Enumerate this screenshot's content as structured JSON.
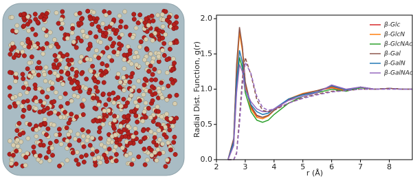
{
  "chart_data": {
    "type": "line",
    "ylabel": "Radial Dist. Function, g(r)",
    "xlabel": "r (Å)",
    "x": [
      2.4,
      2.6,
      2.7,
      2.8,
      2.9,
      3.0,
      3.2,
      3.4,
      3.6,
      3.8,
      4.0,
      4.5,
      5.0,
      5.5,
      6.0,
      6.5,
      7.0,
      7.5,
      8.0,
      8.5,
      8.8
    ],
    "series": [
      {
        "name": "β-Glc",
        "color": "#d62728",
        "values": [
          0,
          0.3,
          1.3,
          1.85,
          1.6,
          1.1,
          0.75,
          0.62,
          0.6,
          0.62,
          0.7,
          0.85,
          0.93,
          0.98,
          1.02,
          0.98,
          1.03,
          1.0,
          1.01,
          1.0,
          1.0
        ]
      },
      {
        "name": "β-GlcN",
        "color": "#ff7f0e",
        "values": [
          0,
          0.28,
          1.25,
          1.8,
          1.55,
          1.05,
          0.72,
          0.6,
          0.58,
          0.62,
          0.7,
          0.86,
          0.94,
          0.98,
          1.03,
          0.98,
          1.02,
          1.0,
          1.01,
          1.0,
          1.0
        ]
      },
      {
        "name": "β-GlcNAc",
        "color": "#2ca02c",
        "values": [
          0,
          0.22,
          1.0,
          1.45,
          1.3,
          0.95,
          0.68,
          0.56,
          0.53,
          0.56,
          0.64,
          0.8,
          0.9,
          0.95,
          1.0,
          0.97,
          1.02,
          1.0,
          1.01,
          1.0,
          1.0
        ]
      },
      {
        "name": "β-Gal",
        "color": "#8c564b",
        "values": [
          0,
          0.3,
          1.35,
          1.88,
          1.6,
          1.1,
          0.76,
          0.63,
          0.6,
          0.63,
          0.7,
          0.86,
          0.93,
          0.98,
          1.04,
          0.99,
          1.03,
          1.0,
          1.01,
          1.0,
          1.0
        ]
      },
      {
        "name": "β-GalN",
        "color": "#1f77b4",
        "values": [
          0,
          0.25,
          1.1,
          1.55,
          1.38,
          1.0,
          0.78,
          0.68,
          0.64,
          0.66,
          0.72,
          0.86,
          0.92,
          0.96,
          1.05,
          0.99,
          1.03,
          1.0,
          1.01,
          1.0,
          1.0
        ]
      },
      {
        "name": "β-GalNAc",
        "color": "#9467bd",
        "values": [
          0,
          0.2,
          0.95,
          1.35,
          1.25,
          1.0,
          0.82,
          0.72,
          0.68,
          0.68,
          0.72,
          0.84,
          0.9,
          0.95,
          1.06,
          1.0,
          1.03,
          1.0,
          1.01,
          1.0,
          1.0
        ]
      },
      {
        "color": "#8c564b",
        "dash": true,
        "values": [
          0,
          0,
          0.1,
          0.6,
          1.15,
          1.45,
          1.2,
          0.85,
          0.7,
          0.68,
          0.7,
          0.8,
          0.88,
          0.93,
          0.97,
          0.98,
          1.0,
          1.0,
          1.01,
          1.0,
          1.0
        ]
      },
      {
        "color": "#9467bd",
        "dash": true,
        "values": [
          0,
          0,
          0.08,
          0.5,
          1.05,
          1.38,
          1.22,
          0.9,
          0.74,
          0.7,
          0.72,
          0.8,
          0.87,
          0.92,
          0.96,
          0.98,
          1.0,
          1.0,
          1.0,
          1.0,
          1.0
        ]
      }
    ],
    "xlim": [
      2,
      8.8
    ],
    "xticks": [
      2,
      3,
      4,
      5,
      6,
      7,
      8
    ],
    "ylim": [
      0,
      2.05
    ],
    "yticks": [
      {
        "value": 0,
        "label": "0.0"
      },
      0.5,
      {
        "value": 1,
        "label": "1.0"
      },
      1.5,
      {
        "value": 2,
        "label": "2.0"
      }
    ],
    "legend": "upper right"
  }
}
